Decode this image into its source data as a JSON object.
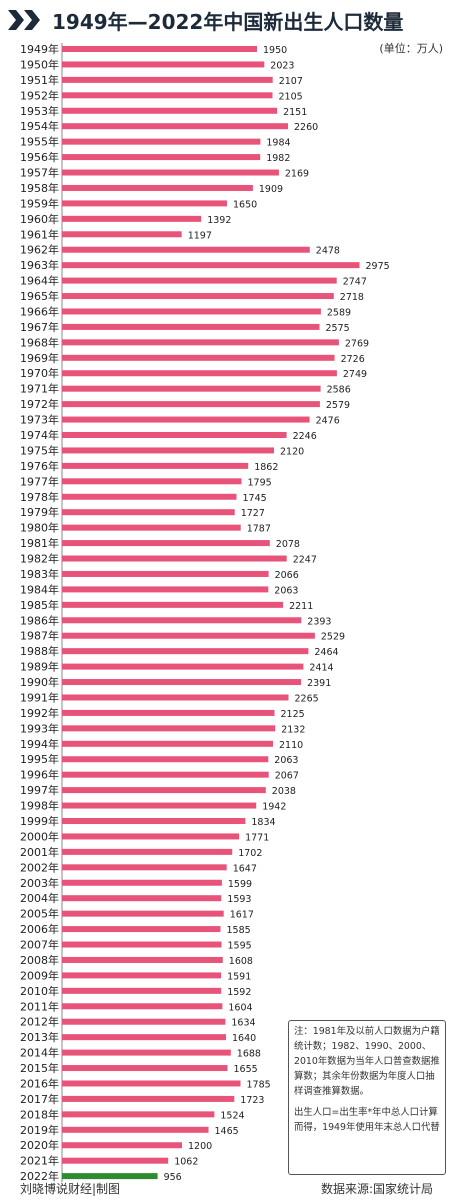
{
  "title": "1949年—2022年中国新出生人口数量",
  "unit": "(单位：万人)",
  "note": {
    "text1": "注：1981年及以前人口数据为户籍统计数；1982、1990、2000、2010年数据为当年人口普查数据推算数；其余年份数据为年度人口抽样调查推算数据。",
    "text2": "出生人口=出生率*年中总人口计算而得，1949年使用年末总人口代替"
  },
  "footer": {
    "left": "刘晓博说财经|制图",
    "right": "数据来源:国家统计局"
  },
  "colors": {
    "bar": "#e8537a",
    "bar_highlight": "#2e8b2e",
    "title": "#1d2a3a"
  },
  "chart_data": {
    "type": "bar",
    "orientation": "horizontal",
    "categories": [
      "1949年",
      "1950年",
      "1951年",
      "1952年",
      "1953年",
      "1954年",
      "1955年",
      "1956年",
      "1957年",
      "1958年",
      "1959年",
      "1960年",
      "1961年",
      "1962年",
      "1963年",
      "1964年",
      "1965年",
      "1966年",
      "1967年",
      "1968年",
      "1969年",
      "1970年",
      "1971年",
      "1972年",
      "1973年",
      "1974年",
      "1975年",
      "1976年",
      "1977年",
      "1978年",
      "1979年",
      "1980年",
      "1981年",
      "1982年",
      "1983年",
      "1984年",
      "1985年",
      "1986年",
      "1987年",
      "1988年",
      "1989年",
      "1990年",
      "1991年",
      "1992年",
      "1993年",
      "1994年",
      "1995年",
      "1996年",
      "1997年",
      "1998年",
      "1999年",
      "2000年",
      "2001年",
      "2002年",
      "2003年",
      "2004年",
      "2005年",
      "2006年",
      "2007年",
      "2008年",
      "2009年",
      "2010年",
      "2011年",
      "2012年",
      "2013年",
      "2014年",
      "2015年",
      "2016年",
      "2017年",
      "2018年",
      "2019年",
      "2020年",
      "2021年",
      "2022年"
    ],
    "values": [
      1950,
      2023,
      2107,
      2105,
      2151,
      2260,
      1984,
      1982,
      2169,
      1909,
      1650,
      1392,
      1197,
      2478,
      2975,
      2747,
      2718,
      2589,
      2575,
      2769,
      2726,
      2749,
      2586,
      2579,
      2476,
      2246,
      2120,
      1862,
      1795,
      1745,
      1727,
      1787,
      2078,
      2247,
      2066,
      2063,
      2211,
      2393,
      2529,
      2464,
      2414,
      2391,
      2265,
      2125,
      2132,
      2110,
      2063,
      2067,
      2038,
      1942,
      1834,
      1771,
      1702,
      1647,
      1599,
      1593,
      1617,
      1585,
      1595,
      1608,
      1591,
      1592,
      1604,
      1634,
      1640,
      1688,
      1655,
      1785,
      1723,
      1524,
      1465,
      1200,
      1062,
      956
    ],
    "highlight_index": 73,
    "xlim": [
      0,
      3300
    ],
    "grid": false,
    "legend": "none"
  }
}
